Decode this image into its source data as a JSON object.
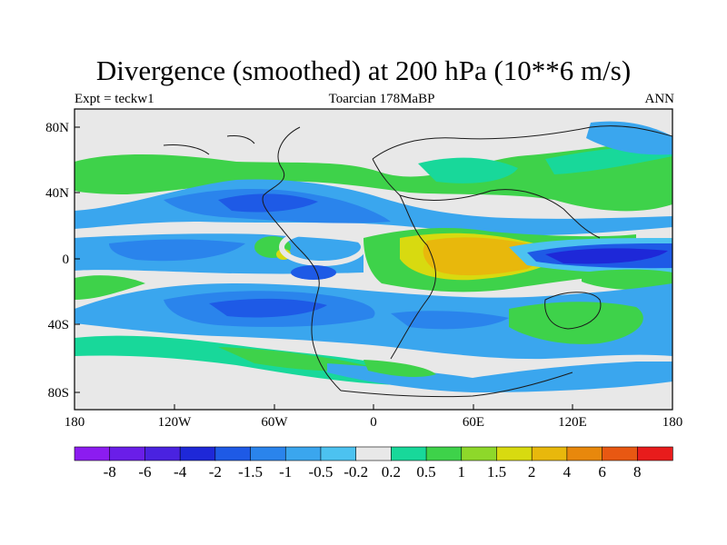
{
  "title": "Divergence (smoothed) at 200 hPa (10**6 m/s)",
  "left_label": "Expt = teckw1",
  "center_label": "Toarcian 178MaBP",
  "right_label": "ANN",
  "x_ticks": [
    "180",
    "120W",
    "60W",
    "0",
    "60E",
    "120E",
    "180"
  ],
  "y_ticks": [
    "80N",
    "40N",
    "0",
    "40S",
    "80S"
  ],
  "colorbar": {
    "colors": [
      "#8c1cf0",
      "#6a1ee8",
      "#4a22e0",
      "#1e28d8",
      "#1e5ae6",
      "#2a84ec",
      "#3aa6ee",
      "#4cc2f0",
      "#e8e8e8",
      "#18d89a",
      "#3ed24a",
      "#8ed82a",
      "#d8da10",
      "#e8b80c",
      "#e8880c",
      "#e85812",
      "#e81c1c"
    ],
    "labels": [
      "-8",
      "-6",
      "-4",
      "-2",
      "-1.5",
      "-1",
      "-0.5",
      "-0.2",
      "0.2",
      "0.5",
      "1",
      "1.5",
      "2",
      "4",
      "6",
      "8"
    ]
  },
  "palette": {
    "background": "#e8e8e8",
    "light_blue": "#3aa6ee",
    "mid_blue": "#2a84ec",
    "blue": "#1e5ae6",
    "dark_blue": "#1e28d8",
    "cyan": "#4cc2f0",
    "green": "#3ed24a",
    "teal": "#18d89a",
    "yellow": "#d8da10",
    "orange": "#e8b80c"
  }
}
